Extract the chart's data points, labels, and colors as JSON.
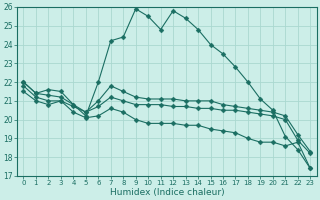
{
  "xlabel": "Humidex (Indice chaleur)",
  "background_color": "#cceee8",
  "grid_color": "#aad8d0",
  "line_color": "#1a6e62",
  "xlim": [
    -0.5,
    23.5
  ],
  "ylim": [
    17,
    26
  ],
  "yticks": [
    17,
    18,
    19,
    20,
    21,
    22,
    23,
    24,
    25,
    26
  ],
  "xticks": [
    0,
    1,
    2,
    3,
    4,
    5,
    6,
    7,
    8,
    9,
    10,
    11,
    12,
    13,
    14,
    15,
    16,
    17,
    18,
    19,
    20,
    21,
    22,
    23
  ],
  "series": [
    {
      "x": [
        0,
        1,
        2,
        3,
        4,
        5,
        6,
        7,
        8,
        9,
        10,
        11,
        12,
        13,
        14,
        15,
        16,
        17,
        18,
        19,
        20,
        21,
        22,
        23
      ],
      "y": [
        22.0,
        21.4,
        21.6,
        21.5,
        20.8,
        20.2,
        22.0,
        24.2,
        24.4,
        25.9,
        25.5,
        24.8,
        25.8,
        25.4,
        24.8,
        24.0,
        23.5,
        22.8,
        22.0,
        21.1,
        20.5,
        19.1,
        18.4,
        17.4
      ],
      "marker": "D",
      "markersize": 2.5
    },
    {
      "x": [
        0,
        1,
        2,
        3,
        4,
        5,
        6,
        7,
        8,
        9,
        10,
        11,
        12,
        13,
        14,
        15,
        16,
        17,
        18,
        19,
        20,
        21,
        22,
        23
      ],
      "y": [
        22.0,
        21.4,
        21.3,
        21.2,
        20.8,
        20.4,
        21.0,
        21.8,
        21.5,
        21.2,
        21.1,
        21.1,
        21.1,
        21.0,
        21.0,
        21.0,
        20.8,
        20.7,
        20.6,
        20.5,
        20.4,
        20.2,
        19.2,
        18.3
      ],
      "marker": "D",
      "markersize": 2.5
    },
    {
      "x": [
        0,
        1,
        2,
        3,
        4,
        5,
        6,
        7,
        8,
        9,
        10,
        11,
        12,
        13,
        14,
        15,
        16,
        17,
        18,
        19,
        20,
        21,
        22,
        23
      ],
      "y": [
        21.8,
        21.2,
        21.0,
        21.0,
        20.7,
        20.4,
        20.7,
        21.2,
        21.0,
        20.8,
        20.8,
        20.8,
        20.7,
        20.7,
        20.6,
        20.6,
        20.5,
        20.5,
        20.4,
        20.3,
        20.2,
        20.0,
        18.9,
        18.2
      ],
      "marker": "D",
      "markersize": 2.5
    },
    {
      "x": [
        0,
        1,
        2,
        3,
        4,
        5,
        6,
        7,
        8,
        9,
        10,
        11,
        12,
        13,
        14,
        15,
        16,
        17,
        18,
        19,
        20,
        21,
        22,
        23
      ],
      "y": [
        21.5,
        21.0,
        20.8,
        21.0,
        20.4,
        20.1,
        20.2,
        20.6,
        20.4,
        20.0,
        19.8,
        19.8,
        19.8,
        19.7,
        19.7,
        19.5,
        19.4,
        19.3,
        19.0,
        18.8,
        18.8,
        18.6,
        18.8,
        17.4
      ],
      "marker": "D",
      "markersize": 2.5
    }
  ]
}
